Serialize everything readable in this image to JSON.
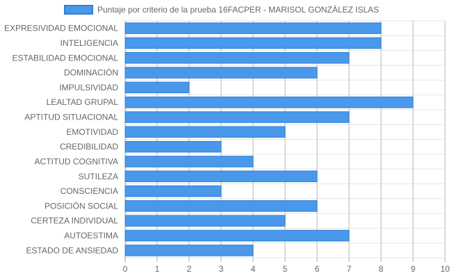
{
  "chart_data": {
    "type": "bar",
    "orientation": "horizontal",
    "categories": [
      "EXPRESIVIDAD EMOCIONAL",
      "INTELIGENCIA",
      "ESTABILIDAD EMOCIONAL",
      "DOMINACIÓN",
      "IMPULSIVIDAD",
      "LEALTAD GRUPAL",
      "APTITUD SITUACIONAL",
      "EMOTIVIDAD",
      "CREDIBILIDAD",
      "ACTITUD COGNITIVA",
      "SUTILEZA",
      "CONSCIENCIA",
      "POSICIÓN SOCIAL",
      "CERTEZA INDIVIDUAL",
      "AUTOESTIMA",
      "ESTADO DE ANSIEDAD"
    ],
    "series": [
      {
        "name": "Puntaje por criterio de la prueba 16FACPER - MARISOL GONZÁLEZ ISLAS",
        "values": [
          8,
          8,
          7,
          6,
          2,
          9,
          7,
          5,
          3,
          4,
          6,
          3,
          6,
          5,
          7,
          4
        ],
        "color": "#4a98ea",
        "border_color": "#2f7fd6"
      }
    ],
    "xlim": [
      0,
      10
    ],
    "x_ticks": [
      "0",
      "1",
      "2",
      "3",
      "4",
      "5",
      "6",
      "7",
      "8",
      "9",
      "10"
    ],
    "grid": true,
    "legend_position": "top"
  }
}
